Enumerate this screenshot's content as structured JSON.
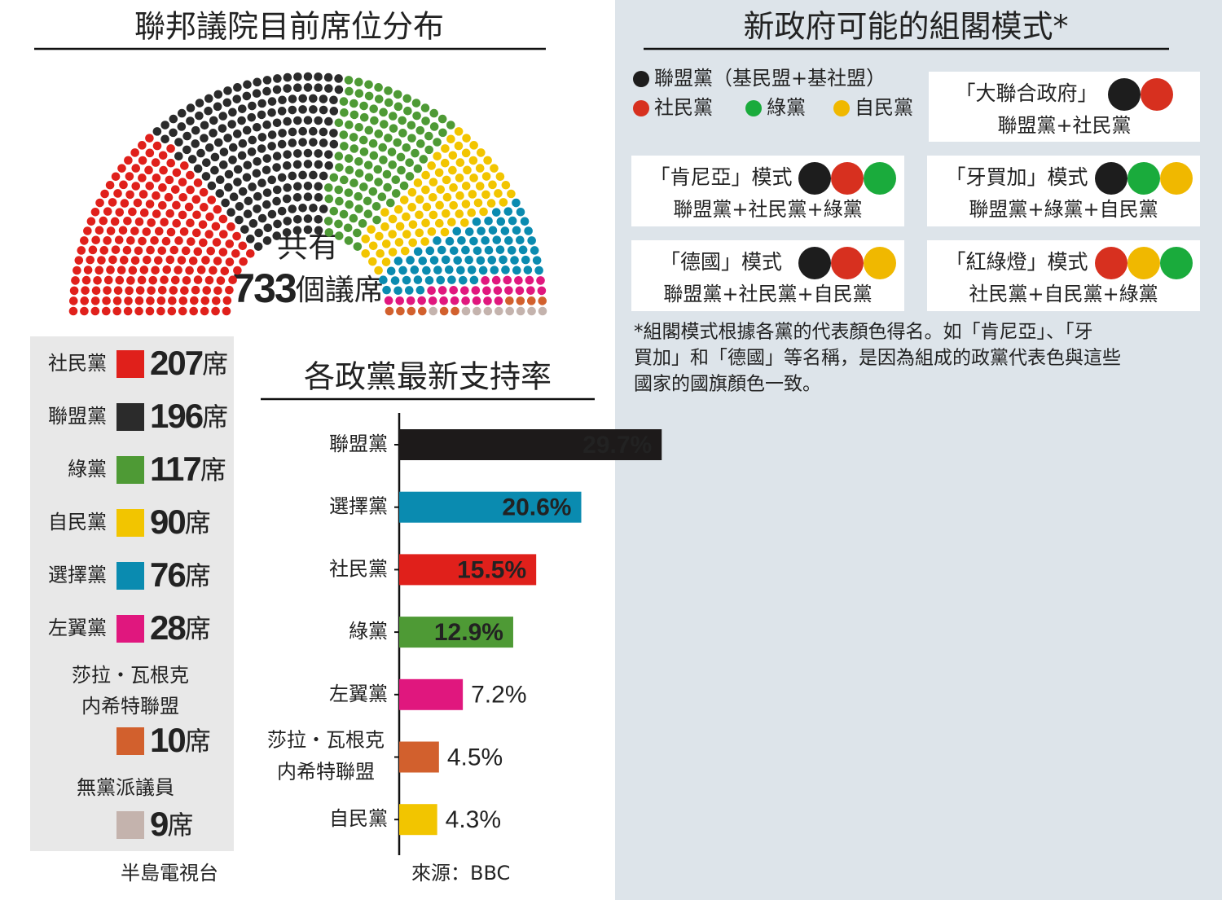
{
  "chart_data": [
    {
      "type": "parliament",
      "title": "聯邦議院目前席位分布",
      "center_text": [
        "共有",
        "733個議席"
      ],
      "categories": [
        "社民黨",
        "聯盟黨",
        "綠黨",
        "自民黨",
        "選擇黨",
        "左翼黨",
        [
          "莎拉・瓦根克",
          "内希特聯盟"
        ],
        "無黨派議員"
      ],
      "values": [
        207,
        196,
        117,
        90,
        76,
        28,
        10,
        9
      ],
      "value_labels": [
        "207席",
        "196席",
        "117席",
        "90席",
        "76席",
        "28席",
        "10席",
        "9席"
      ],
      "colors": [
        "#e0201b",
        "#2b2b2b",
        "#4e9a35",
        "#f2c500",
        "#0a8bb0",
        "#e0177e",
        "#d2602d",
        "#c4b3ad"
      ],
      "source": "半島電視台"
    },
    {
      "type": "bar",
      "title": "各政黨最新支持率",
      "categories": [
        "聯盟黨",
        "選擇黨",
        "社民黨",
        "綠黨",
        "左翼黨",
        [
          "莎拉・瓦根克",
          "内希特聯盟"
        ],
        "自民黨"
      ],
      "values": [
        29.7,
        20.6,
        15.5,
        12.9,
        7.2,
        4.5,
        4.3
      ],
      "value_labels": [
        "29.7%",
        "20.6%",
        "15.5%",
        "12.9%",
        "7.2%",
        "4.5%",
        "4.3%"
      ],
      "colors": [
        "#1d1a1a",
        "#0a8bb0",
        "#e0201b",
        "#4e9a35",
        "#e0177e",
        "#d2602d",
        "#f2c500"
      ],
      "source": "來源：BBC"
    }
  ],
  "coalitions": {
    "title": "新政府可能的組閣模式*",
    "legend": [
      {
        "label": "聯盟黨（基民盟+基社盟）",
        "color": "#1d1d1d"
      },
      {
        "label": "社民黨",
        "color": "#d7301f"
      },
      {
        "label": "綠黨",
        "color": "#1aab3c"
      },
      {
        "label": "自民黨",
        "color": "#f0b800"
      }
    ],
    "boxes": [
      {
        "name": "「大聯合政府」",
        "colors": [
          "#1d1d1d",
          "#d7301f"
        ],
        "parties": "聯盟黨+社民黨"
      },
      {
        "name": "「肯尼亞」模式",
        "colors": [
          "#1d1d1d",
          "#d7301f",
          "#1aab3c"
        ],
        "parties": "聯盟黨+社民黨+綠黨"
      },
      {
        "name": "「牙買加」模式",
        "colors": [
          "#1d1d1d",
          "#1aab3c",
          "#f0b800"
        ],
        "parties": "聯盟黨+綠黨+自民黨"
      },
      {
        "name": "「德國」模式",
        "colors": [
          "#1d1d1d",
          "#d7301f",
          "#f0b800"
        ],
        "parties": "聯盟黨+社民黨+自民黨"
      },
      {
        "name": "「紅綠燈」模式",
        "colors": [
          "#d7301f",
          "#f0b800",
          "#1aab3c"
        ],
        "parties": "社民黨+自民黨+綠黨"
      }
    ],
    "footnote": [
      "*組閣模式根據各黨的代表顏色得名。如「肯尼亞」、「牙",
      "買加」和「德國」等名稱，是因為組成的政黨代表色與這些",
      "國家的國旗顏色一致。"
    ]
  }
}
